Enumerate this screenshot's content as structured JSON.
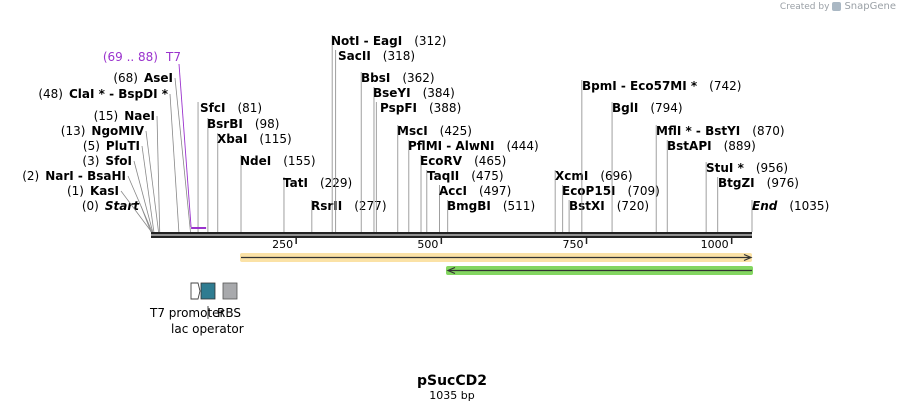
{
  "branding": {
    "created_by": "Created by",
    "product": "SnapGene"
  },
  "plasmid": {
    "name": "pSucCD2",
    "length_label": "1035 bp",
    "length": 1035
  },
  "axis": {
    "ticks": [
      250,
      500,
      750,
      1000
    ]
  },
  "primer": {
    "name": "T7",
    "range_label": "(69 .. 88)",
    "start": 69,
    "end": 88,
    "color": "#9a32cd"
  },
  "sites": [
    {
      "name": "Start",
      "pos": "(0)",
      "bp": 0,
      "italic": true
    },
    {
      "name": "KasI",
      "pos": "(1)",
      "bp": 1
    },
    {
      "name": "NarI  - BsaHI",
      "pos": "(2)",
      "bp": 2
    },
    {
      "name": "SfoI",
      "pos": "(3)",
      "bp": 3
    },
    {
      "name": "PluTI",
      "pos": "(5)",
      "bp": 5
    },
    {
      "name": "NgoMIV",
      "pos": "(13)",
      "bp": 13
    },
    {
      "name": "NaeI",
      "pos": "(15)",
      "bp": 15
    },
    {
      "name": "ClaI *  - BspDI *",
      "pos": "(48)",
      "bp": 48
    },
    {
      "name": "AseI",
      "pos": "(68)",
      "bp": 68
    },
    {
      "name": "SfcI",
      "pos": "(81)",
      "bp": 81
    },
    {
      "name": "BsrBI",
      "pos": "(98)",
      "bp": 98
    },
    {
      "name": "XbaI",
      "pos": "(115)",
      "bp": 115
    },
    {
      "name": "NdeI",
      "pos": "(155)",
      "bp": 155
    },
    {
      "name": "TatI",
      "pos": "(229)",
      "bp": 229
    },
    {
      "name": "RsrII",
      "pos": "(277)",
      "bp": 277
    },
    {
      "name": "NotI  - EagI",
      "pos": "(312)",
      "bp": 312
    },
    {
      "name": "SacII",
      "pos": "(318)",
      "bp": 318
    },
    {
      "name": "BbsI",
      "pos": "(362)",
      "bp": 362
    },
    {
      "name": "BseYI",
      "pos": "(384)",
      "bp": 384
    },
    {
      "name": "PspFI",
      "pos": "(388)",
      "bp": 388
    },
    {
      "name": "MscI",
      "pos": "(425)",
      "bp": 425
    },
    {
      "name": "PflMI  - AlwNI",
      "pos": "(444)",
      "bp": 444
    },
    {
      "name": "EcoRV",
      "pos": "(465)",
      "bp": 465
    },
    {
      "name": "TaqII",
      "pos": "(475)",
      "bp": 475
    },
    {
      "name": "AccI",
      "pos": "(497)",
      "bp": 497
    },
    {
      "name": "BmgBI",
      "pos": "(511)",
      "bp": 511
    },
    {
      "name": "XcmI",
      "pos": "(696)",
      "bp": 696
    },
    {
      "name": "EcoP15I",
      "pos": "(709)",
      "bp": 709
    },
    {
      "name": "BstXI",
      "pos": "(720)",
      "bp": 720
    },
    {
      "name": "BpmI  - Eco57MI *",
      "pos": "(742)",
      "bp": 742
    },
    {
      "name": "BglI",
      "pos": "(794)",
      "bp": 794
    },
    {
      "name": "MflI *  - BstYI",
      "pos": "(870)",
      "bp": 870
    },
    {
      "name": "BstAPI",
      "pos": "(889)",
      "bp": 889
    },
    {
      "name": "StuI *",
      "pos": "(956)",
      "bp": 956
    },
    {
      "name": "BtgZI",
      "pos": "(976)",
      "bp": 976
    },
    {
      "name": "End",
      "pos": "(1035)",
      "bp": 1035,
      "italic": true
    }
  ],
  "orf_colors": {
    "orange": "#e8a23a",
    "green": "#6dcf45"
  },
  "features": [
    {
      "label": "T7 promoter",
      "color": "#ffffff"
    },
    {
      "label": "lac operator",
      "color": "#2f7c91"
    },
    {
      "label": "RBS",
      "color": "#a8a9ac"
    }
  ]
}
